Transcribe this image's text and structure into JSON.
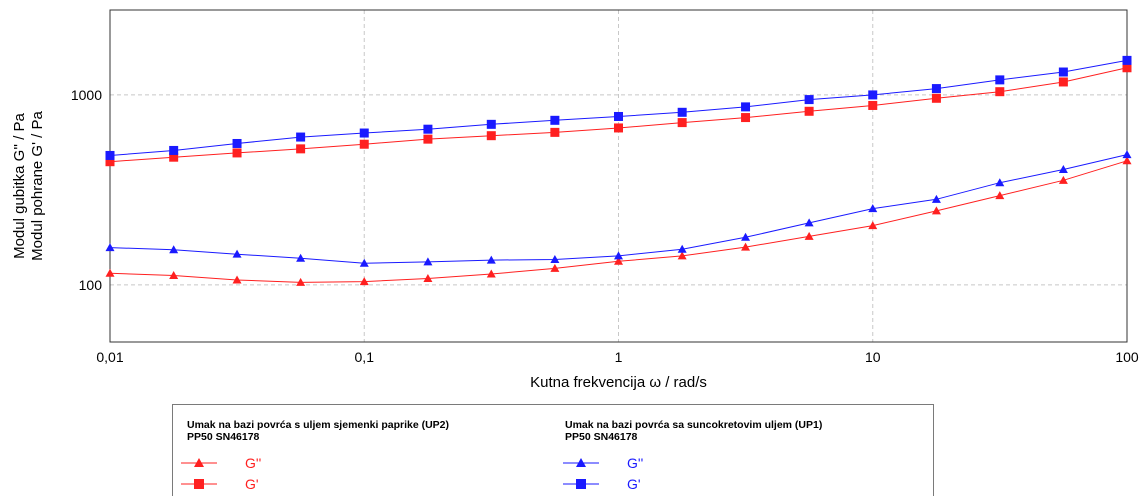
{
  "chart_data": {
    "type": "line",
    "title": "",
    "xlabel": "Kutna frekvencija ω / rad/s",
    "ylabel_lines": [
      "Modul gubitka G'' / Pa",
      "Modul pohrane G' / Pa"
    ],
    "x_scale": "log",
    "y_scale": "log",
    "xlim": [
      0.01,
      100
    ],
    "ylim": [
      50,
      2800
    ],
    "x_ticks": [
      0.01,
      0.1,
      1,
      10,
      100
    ],
    "x_tick_labels": [
      "0,01",
      "0,1",
      "1",
      "10",
      "100"
    ],
    "y_ticks": [
      100,
      1000
    ],
    "y_tick_labels": [
      "100",
      "1000"
    ],
    "grid": true,
    "x": [
      0.01,
      0.0178,
      0.0316,
      0.0562,
      0.1,
      0.178,
      0.316,
      0.562,
      1,
      1.78,
      3.16,
      5.62,
      10,
      17.8,
      31.6,
      56.2,
      100
    ],
    "series": [
      {
        "group": 0,
        "label": "G''",
        "color": "#ff2020",
        "marker": "triangle",
        "values": [
          115,
          112,
          106,
          103,
          104,
          108,
          114,
          122,
          133,
          142,
          158,
          180,
          205,
          245,
          295,
          355,
          450
        ]
      },
      {
        "group": 0,
        "label": "G'",
        "color": "#ff2020",
        "marker": "square",
        "values": [
          445,
          470,
          495,
          520,
          550,
          585,
          610,
          635,
          670,
          715,
          760,
          820,
          880,
          960,
          1040,
          1170,
          1390
        ]
      },
      {
        "group": 1,
        "label": "G''",
        "color": "#1a1aff",
        "marker": "triangle",
        "values": [
          157,
          153,
          145,
          138,
          130,
          132,
          135,
          136,
          142,
          154,
          178,
          212,
          252,
          282,
          345,
          405,
          485
        ]
      },
      {
        "group": 1,
        "label": "G'",
        "color": "#1a1aff",
        "marker": "square",
        "values": [
          480,
          510,
          555,
          600,
          630,
          660,
          700,
          735,
          770,
          810,
          865,
          945,
          1000,
          1080,
          1200,
          1320,
          1520
        ]
      }
    ],
    "legend": {
      "placement": "bottom",
      "groups": [
        {
          "name_line1": "Umak na bazi povrća s uljem sjemenki paprike (UP2)",
          "name_line2": "PP50 SN46178"
        },
        {
          "name_line1": "Umak na bazi povrća sa suncokretovim uljem (UP1)",
          "name_line2": "PP50 SN46178"
        }
      ]
    }
  }
}
